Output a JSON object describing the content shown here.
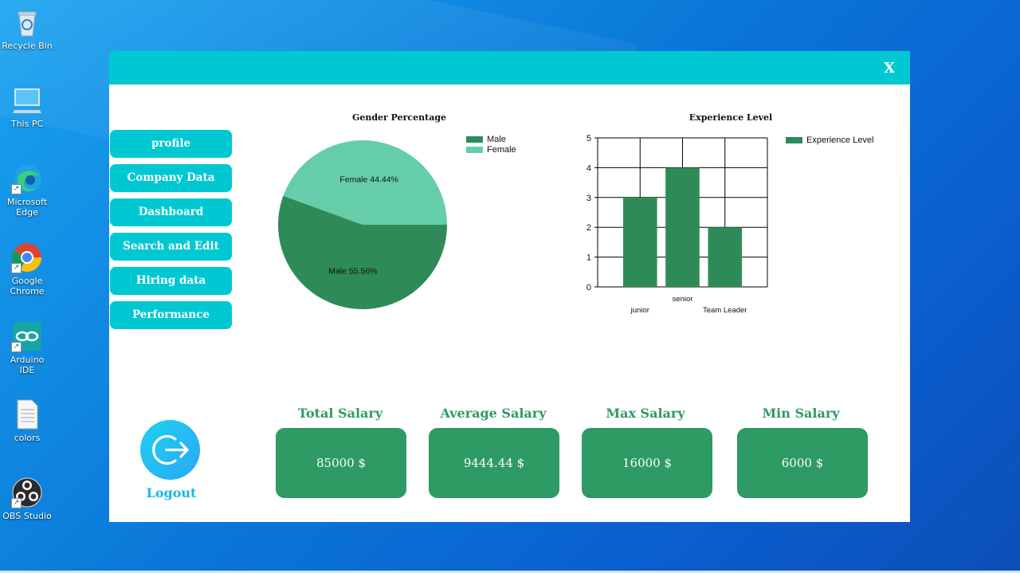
{
  "desktop": {
    "icons": [
      {
        "label": "Recycle Bin",
        "icon": "recycle-bin-icon"
      },
      {
        "label": "This PC",
        "icon": "computer-icon"
      },
      {
        "label": "Microsoft Edge",
        "icon": "edge-icon"
      },
      {
        "label": "Google Chrome",
        "icon": "chrome-icon"
      },
      {
        "label": "Arduino IDE",
        "icon": "arduino-icon"
      },
      {
        "label": "colors",
        "icon": "text-file-icon"
      },
      {
        "label": "OBS Studio",
        "icon": "obs-icon"
      }
    ]
  },
  "window": {
    "close_label": "X",
    "accent_color": "#00c8d2",
    "green_color": "#2e9a64"
  },
  "nav": {
    "items": [
      {
        "label": "profile"
      },
      {
        "label": "Company Data"
      },
      {
        "label": "Dashboard"
      },
      {
        "label": "Search and Edit"
      },
      {
        "label": "Hiring data"
      },
      {
        "label": "Performance"
      }
    ]
  },
  "chart_data": [
    {
      "type": "pie",
      "title": "Gender Percentage",
      "slices": [
        {
          "name": "Male",
          "value": 55.56,
          "label": "Male 55.56%",
          "color": "#2e8b57"
        },
        {
          "name": "Female",
          "value": 44.44,
          "label": "Female 44.44%",
          "color": "#66cdaa"
        }
      ],
      "legend": [
        "Male",
        "Female"
      ],
      "legend_position": "top-right"
    },
    {
      "type": "bar",
      "title": "Experience Level",
      "categories": [
        "junior",
        "senior",
        "Team Leader"
      ],
      "series": [
        {
          "name": "Experience Level",
          "values": [
            3,
            4,
            2
          ],
          "color": "#2e8b57"
        }
      ],
      "ylim": [
        0,
        5
      ],
      "yticks": [
        "0",
        "1",
        "2",
        "3",
        "4",
        "5"
      ],
      "grid": true,
      "legend_position": "top-right"
    }
  ],
  "stats": [
    {
      "label": "Total Salary",
      "value": "85000 $"
    },
    {
      "label": "Average Salary",
      "value": "9444.44 $"
    },
    {
      "label": "Max Salary",
      "value": "16000 $"
    },
    {
      "label": "Min Salary",
      "value": "6000 $"
    }
  ],
  "logout": {
    "label": "Logout",
    "icon": "logout-icon"
  }
}
